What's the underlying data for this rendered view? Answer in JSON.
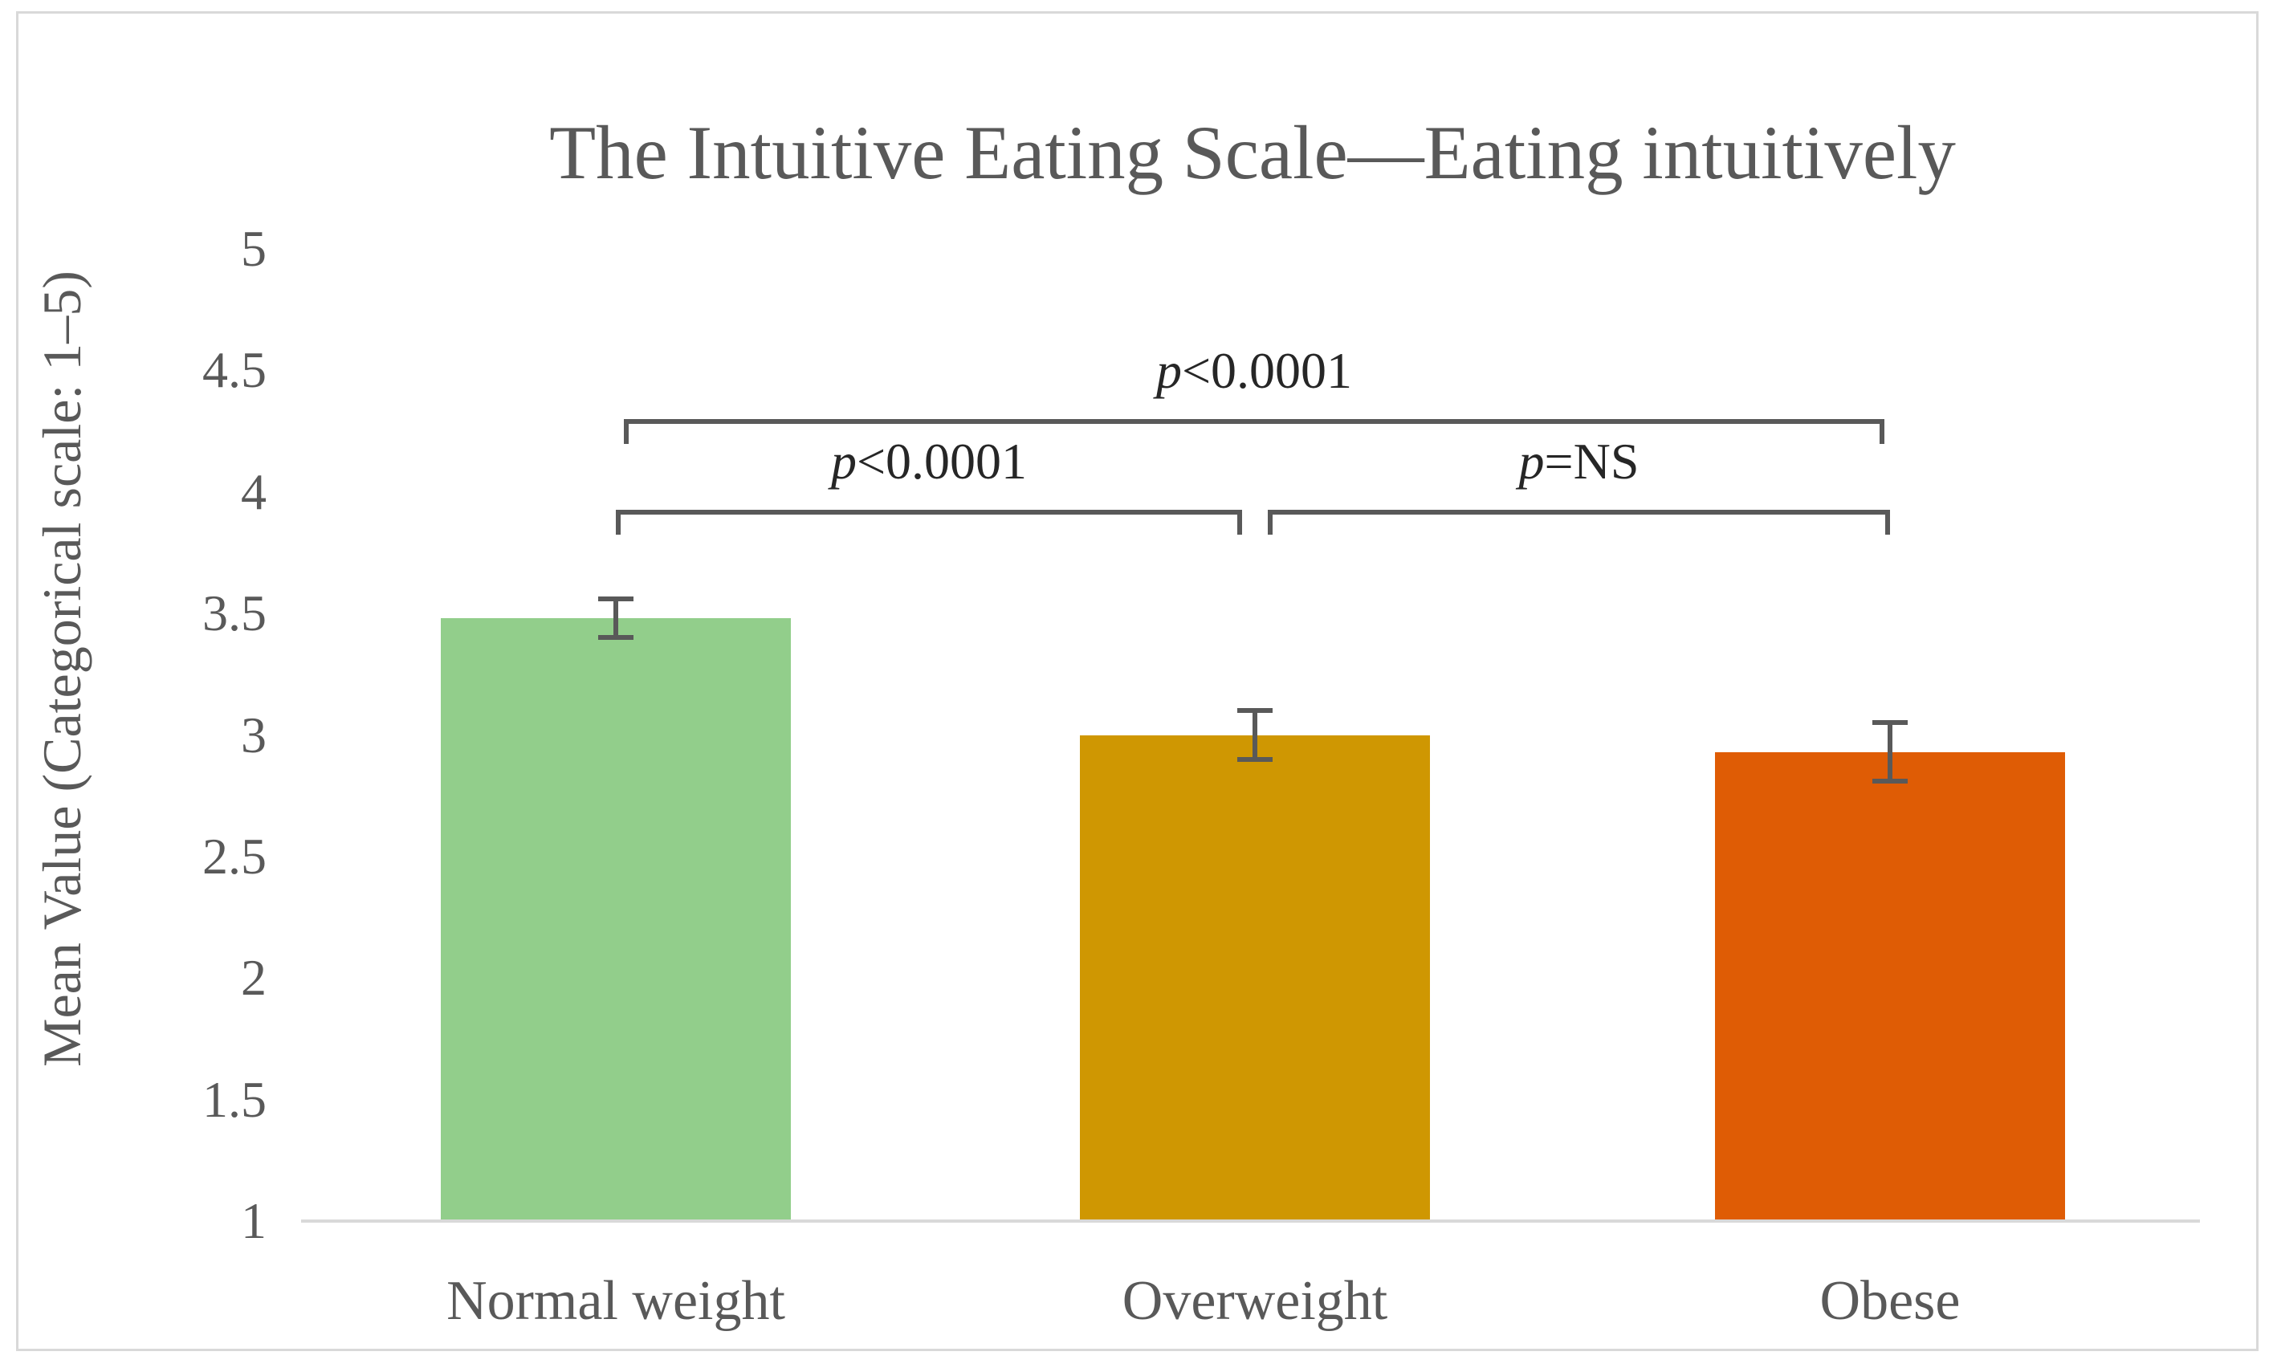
{
  "figure": {
    "title": "The Intuitive Eating Scale—Eating intuitively",
    "y_axis_title": "Mean Value (Categorical scale: 1–5)"
  },
  "chart_data": {
    "type": "bar",
    "title": "The Intuitive Eating Scale—Eating intuitively",
    "xlabel": "",
    "ylabel": "Mean Value (Categorical scale: 1–5)",
    "categories": [
      "Normal weight",
      "Overweight",
      "Obese"
    ],
    "values": [
      3.48,
      3.0,
      2.93
    ],
    "error_bars": [
      0.08,
      0.1,
      0.12
    ],
    "bar_colors": [
      "#92ce8b",
      "#cf9702",
      "#df5c05"
    ],
    "ylim": [
      1,
      5
    ],
    "ytick_step": 0.5,
    "yticks": [
      "5",
      "4.5",
      "4",
      "3.5",
      "3",
      "2.5",
      "2",
      "1.5",
      "1"
    ],
    "grid": false,
    "legend_position": "none",
    "annotations": [
      {
        "label": "p<0.0001",
        "p": "p",
        "text": "<0.0001",
        "from": 0,
        "to": 2,
        "level": "outer"
      },
      {
        "label": "p<0.0001",
        "p": "p",
        "text": "<0.0001",
        "from": 0,
        "to": 1,
        "level": "inner"
      },
      {
        "label": "p=NS",
        "p": "p",
        "text": "=NS",
        "from": 1,
        "to": 2,
        "level": "inner"
      }
    ]
  },
  "colors": {
    "bar_normal_weight": "#92ce8b",
    "bar_overweight": "#cf9702",
    "bar_obese": "#df5c05",
    "error_bar": "#595959",
    "bracket": "#595959",
    "text": "#595959",
    "p_label_text": "#262626",
    "axis_line": "#d9d9d9",
    "frame_border": "#d9d9d9"
  }
}
